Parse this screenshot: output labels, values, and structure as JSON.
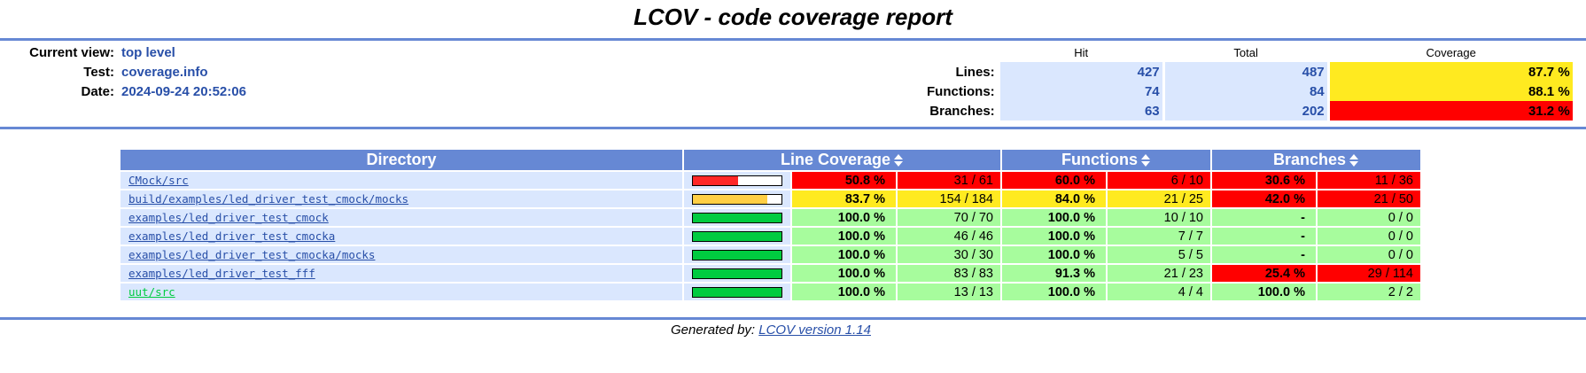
{
  "title": "LCOV - code coverage report",
  "colors": {
    "ruler": "#6688d4",
    "hi": "#a7fc9d",
    "med": "#ffea20",
    "lo": "#ff0000",
    "value_blue": "#284fa8",
    "cell_bg": "#dae7fe"
  },
  "info": {
    "current_view_label": "Current view:",
    "current_view": "top level",
    "test_label": "Test:",
    "test": "coverage.info",
    "date_label": "Date:",
    "date": "2024-09-24 20:52:06"
  },
  "summary": {
    "hit_header": "Hit",
    "total_header": "Total",
    "coverage_header": "Coverage",
    "rows": [
      {
        "label": "Lines:",
        "hit": "427",
        "total": "487",
        "coverage": "87.7 %",
        "level": "med"
      },
      {
        "label": "Functions:",
        "hit": "74",
        "total": "84",
        "coverage": "88.1 %",
        "level": "med"
      },
      {
        "label": "Branches:",
        "hit": "63",
        "total": "202",
        "coverage": "31.2 %",
        "level": "lo"
      }
    ]
  },
  "table": {
    "headers": {
      "directory": "Directory",
      "line_coverage": "Line Coverage",
      "functions": "Functions",
      "branches": "Branches"
    },
    "rows": [
      {
        "dir": "CMock/src",
        "visited": false,
        "line_fraction": 0.508,
        "line_level": "lo",
        "line_pct": "50.8 %",
        "line_cnt": "31 / 61",
        "fn_level": "lo",
        "fn_pct": "60.0 %",
        "fn_cnt": "6 / 10",
        "br_level": "lo",
        "br_pct": "30.6 %",
        "br_cnt": "11 / 36"
      },
      {
        "dir": "build/examples/led_driver_test_cmock/mocks",
        "visited": false,
        "line_fraction": 0.837,
        "line_level": "med",
        "line_pct": "83.7 %",
        "line_cnt": "154 / 184",
        "fn_level": "med",
        "fn_pct": "84.0 %",
        "fn_cnt": "21 / 25",
        "br_level": "lo",
        "br_pct": "42.0 %",
        "br_cnt": "21 / 50"
      },
      {
        "dir": "examples/led_driver_test_cmock",
        "visited": false,
        "line_fraction": 1.0,
        "line_level": "hi",
        "line_pct": "100.0 %",
        "line_cnt": "70 / 70",
        "fn_level": "hi",
        "fn_pct": "100.0 %",
        "fn_cnt": "10 / 10",
        "br_level": "hi",
        "br_pct": "-",
        "br_cnt": "0 / 0"
      },
      {
        "dir": "examples/led_driver_test_cmocka",
        "visited": false,
        "line_fraction": 1.0,
        "line_level": "hi",
        "line_pct": "100.0 %",
        "line_cnt": "46 / 46",
        "fn_level": "hi",
        "fn_pct": "100.0 %",
        "fn_cnt": "7 / 7",
        "br_level": "hi",
        "br_pct": "-",
        "br_cnt": "0 / 0"
      },
      {
        "dir": "examples/led_driver_test_cmocka/mocks",
        "visited": false,
        "line_fraction": 1.0,
        "line_level": "hi",
        "line_pct": "100.0 %",
        "line_cnt": "30 / 30",
        "fn_level": "hi",
        "fn_pct": "100.0 %",
        "fn_cnt": "5 / 5",
        "br_level": "hi",
        "br_pct": "-",
        "br_cnt": "0 / 0"
      },
      {
        "dir": "examples/led_driver_test_fff",
        "visited": false,
        "line_fraction": 1.0,
        "line_level": "hi",
        "line_pct": "100.0 %",
        "line_cnt": "83 / 83",
        "fn_level": "hi",
        "fn_pct": "91.3 %",
        "fn_cnt": "21 / 23",
        "br_level": "lo",
        "br_pct": "25.4 %",
        "br_cnt": "29 / 114"
      },
      {
        "dir": "uut/src",
        "visited": true,
        "line_fraction": 1.0,
        "line_level": "hi",
        "line_pct": "100.0 %",
        "line_cnt": "13 / 13",
        "fn_level": "hi",
        "fn_pct": "100.0 %",
        "fn_cnt": "4 / 4",
        "br_level": "hi",
        "br_pct": "100.0 %",
        "br_cnt": "2 / 2"
      }
    ]
  },
  "footer": {
    "prefix": "Generated by:",
    "link": "LCOV version 1.14"
  }
}
